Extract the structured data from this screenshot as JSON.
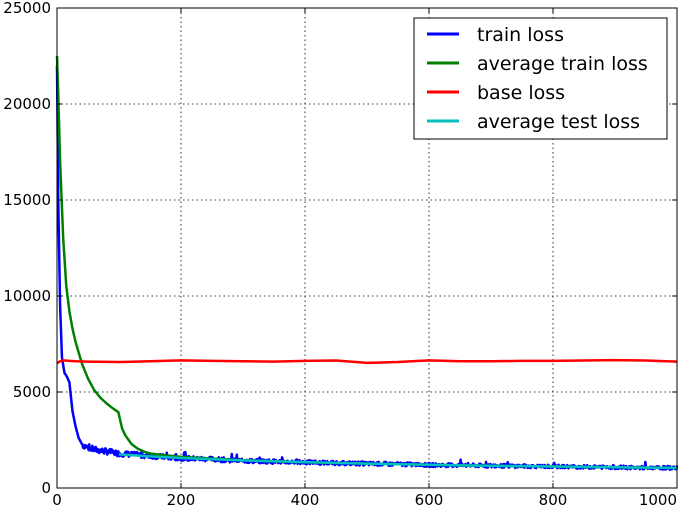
{
  "chart_data": {
    "type": "line",
    "title": "",
    "xlabel": "",
    "ylabel": "",
    "xlim": [
      0,
      1000
    ],
    "ylim": [
      0,
      25000
    ],
    "x_ticks": [
      0,
      200,
      400,
      600,
      800,
      1000
    ],
    "x_tick_labels": [
      "0",
      "200",
      "400",
      "600",
      "800",
      "1000"
    ],
    "y_ticks": [
      0,
      5000,
      10000,
      15000,
      20000,
      25000
    ],
    "y_tick_labels": [
      "0",
      "5000",
      "10000",
      "15000",
      "20000",
      "25000"
    ],
    "grid": true,
    "legend_position": "top-right",
    "series": [
      {
        "name": "train loss",
        "color": "#0000ff",
        "x": [
          0,
          2,
          5,
          8,
          12,
          16,
          20,
          25,
          30,
          35,
          40,
          45,
          50,
          60,
          70,
          80,
          90,
          100,
          120,
          140,
          160,
          180,
          200,
          250,
          300,
          350,
          400,
          450,
          500,
          550,
          600,
          650,
          700,
          750,
          800,
          850,
          900,
          950,
          1000
        ],
        "y": [
          22000,
          15000,
          9500,
          6800,
          6000,
          5800,
          5500,
          4000,
          3200,
          2600,
          2300,
          2200,
          2100,
          2000,
          1950,
          1900,
          1850,
          1800,
          1750,
          1700,
          1650,
          1600,
          1550,
          1500,
          1420,
          1380,
          1340,
          1300,
          1270,
          1240,
          1200,
          1180,
          1160,
          1140,
          1120,
          1100,
          1080,
          1050,
          1050
        ],
        "noise": 130
      },
      {
        "name": "average train loss",
        "color": "#008000",
        "x": [
          0,
          2,
          5,
          10,
          15,
          20,
          25,
          30,
          40,
          50,
          60,
          70,
          80,
          90,
          99,
          100,
          105,
          110,
          120,
          130,
          140,
          150,
          175,
          200,
          250,
          300,
          350,
          400,
          500,
          600,
          700,
          800,
          900,
          1000
        ],
        "y": [
          22500,
          20500,
          17000,
          13000,
          10500,
          9200,
          8300,
          7600,
          6500,
          5700,
          5100,
          4700,
          4400,
          4150,
          3950,
          3800,
          3100,
          2750,
          2300,
          2050,
          1900,
          1800,
          1700,
          1620,
          1530,
          1450,
          1390,
          1340,
          1270,
          1210,
          1160,
          1120,
          1080,
          1050
        ]
      },
      {
        "name": "base loss",
        "color": "#ff0000",
        "x": [
          0,
          5,
          10,
          20,
          30,
          50,
          100,
          150,
          200,
          250,
          300,
          350,
          400,
          450,
          500,
          550,
          600,
          650,
          700,
          750,
          800,
          850,
          900,
          950,
          1000
        ],
        "y": [
          6500,
          6600,
          6650,
          6620,
          6600,
          6580,
          6560,
          6600,
          6650,
          6620,
          6600,
          6580,
          6620,
          6640,
          6520,
          6560,
          6650,
          6600,
          6600,
          6620,
          6620,
          6640,
          6660,
          6640,
          6580
        ]
      },
      {
        "name": "average test loss",
        "color": "#00bfbf",
        "x": [
          100,
          150,
          200,
          250,
          300,
          350,
          400,
          450,
          500,
          550,
          600,
          650,
          700,
          750,
          800,
          850,
          900,
          950,
          1000
        ],
        "y": [
          1750,
          1650,
          1560,
          1500,
          1440,
          1390,
          1350,
          1310,
          1270,
          1240,
          1210,
          1180,
          1160,
          1140,
          1120,
          1100,
          1080,
          1060,
          1050
        ]
      }
    ]
  }
}
